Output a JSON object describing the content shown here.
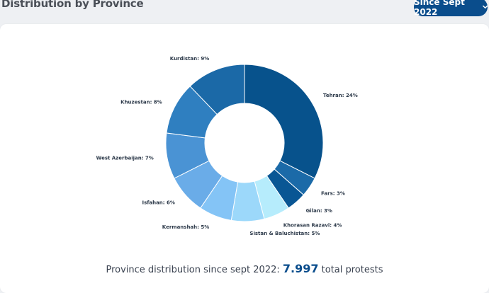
{
  "header": {
    "title": "Distribution by Province",
    "period_button": "Since Sept 2022",
    "period_icon": "chevron-down-icon"
  },
  "footer": {
    "prefix": "Province distribution since sept 2022:",
    "total": "7.997",
    "suffix": "total protests"
  },
  "chart_data": {
    "type": "pie",
    "donut": true,
    "categories": [
      "Tehran",
      "Fars",
      "Gilan",
      "Khorasan Razavi",
      "Sistan & Baluchistan",
      "Kermanshah",
      "Isfahan",
      "West Azerbaijan",
      "Khuzestan",
      "Kurdistan"
    ],
    "values": [
      24,
      3,
      3,
      4,
      5,
      5,
      6,
      7,
      8,
      9
    ],
    "labels": [
      "Tehran: 24%",
      "Fars: 3%",
      "Gilan: 3%",
      "Khorasan Razavi: 4%",
      "Sistan & Baluchistan: 5%",
      "Kermanshah: 5%",
      "Isfahan: 6%",
      "West Azerbaijan: 7%",
      "Khuzestan: 8%",
      "Kurdistan: 9%"
    ],
    "colors": [
      "#07528c",
      "#1b6aa8",
      "#095694",
      "#b6ecfc",
      "#9cd8fa",
      "#84c4f6",
      "#6aace8",
      "#4a93d4",
      "#2f7fc0",
      "#1b69a7"
    ]
  }
}
